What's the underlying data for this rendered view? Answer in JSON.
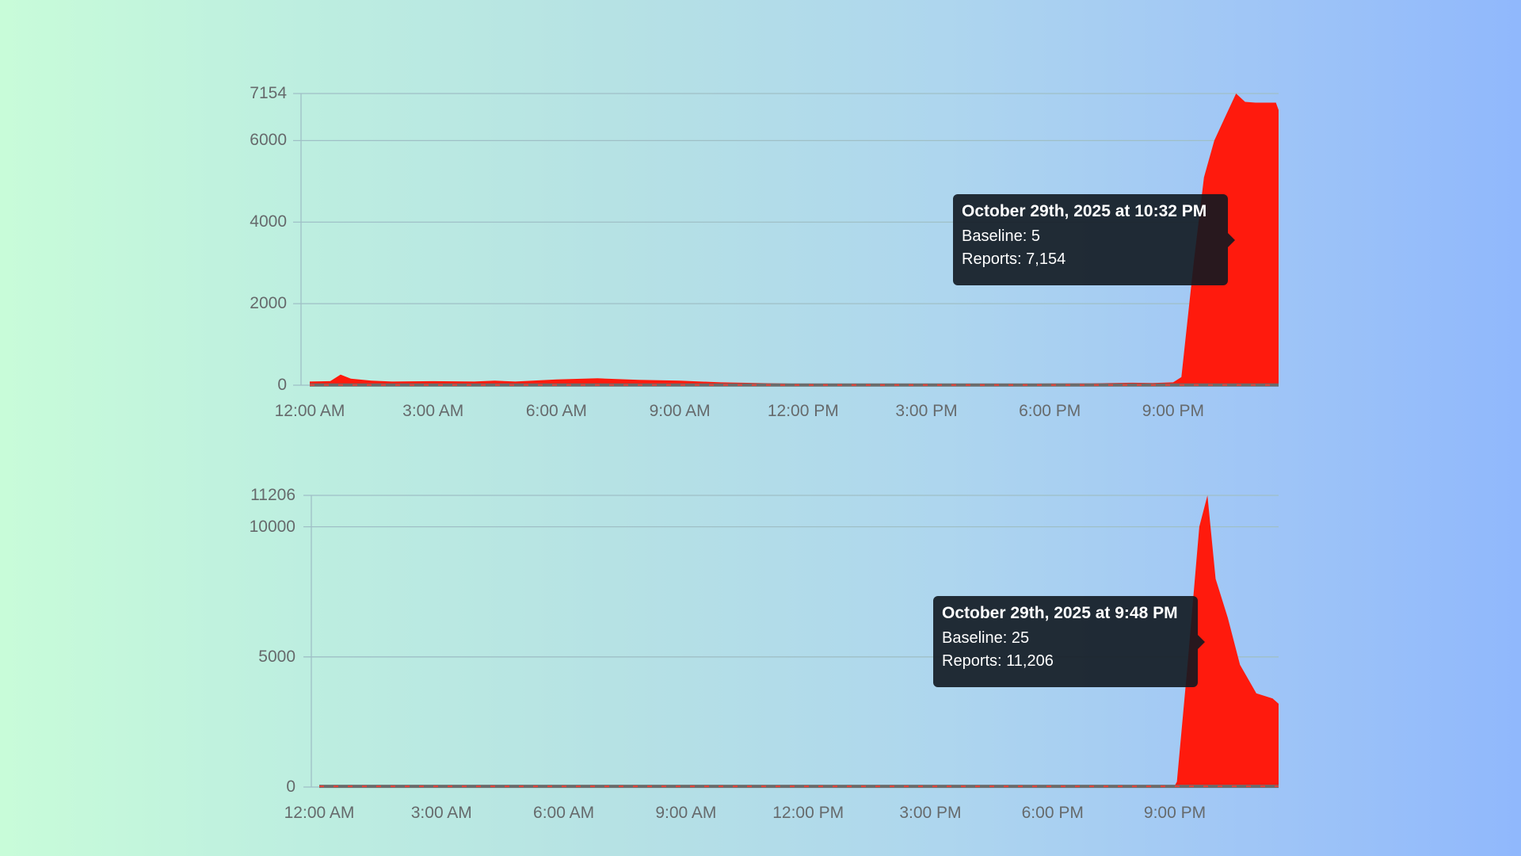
{
  "colors": {
    "area": "#ff1a0d",
    "baseline_line": "#6b6b6b",
    "baseline_dash": "#ff3b2f",
    "grid": "#9fbfc6",
    "tick_text": "#666a6c",
    "tooltip_bg": "#111820"
  },
  "chart_data": [
    {
      "type": "area",
      "title": "",
      "xlabel": "",
      "ylabel": "",
      "x_ticks": [
        "12:00 AM",
        "3:00 AM",
        "6:00 AM",
        "9:00 AM",
        "12:00 PM",
        "3:00 PM",
        "6:00 PM",
        "9:00 PM"
      ],
      "y_ticks": [
        0,
        2000,
        4000,
        6000,
        7154
      ],
      "ylim": [
        0,
        7154
      ],
      "xlim_hours": [
        0,
        23.75
      ],
      "grid": true,
      "legend": "none",
      "series": [
        {
          "name": "Reports",
          "x_hours": [
            0,
            0.5,
            0.75,
            1.0,
            1.5,
            2,
            3,
            4,
            4.5,
            5,
            6,
            7,
            8,
            9,
            10,
            11,
            12,
            13,
            14,
            15,
            16,
            17,
            18,
            19,
            20,
            20.5,
            21,
            21.2,
            21.5,
            21.75,
            22.0,
            22.25,
            22.53,
            22.75,
            23.0,
            23.5,
            23.75
          ],
          "values": [
            90,
            100,
            260,
            160,
            110,
            90,
            100,
            90,
            110,
            90,
            140,
            170,
            130,
            110,
            70,
            50,
            35,
            30,
            25,
            25,
            30,
            35,
            40,
            45,
            60,
            55,
            70,
            200,
            3000,
            5100,
            6000,
            6550,
            7154,
            6950,
            6930,
            6930,
            6750
          ]
        },
        {
          "name": "Baseline",
          "x_hours": [
            0,
            23.75
          ],
          "values": [
            5,
            5
          ]
        }
      ],
      "tooltip": {
        "title": "October 29th, 2025 at 10:32 PM",
        "baseline_label": "Baseline:",
        "baseline_value": "5",
        "reports_label": "Reports:",
        "reports_value": "7,154"
      }
    },
    {
      "type": "area",
      "title": "",
      "xlabel": "",
      "ylabel": "",
      "x_ticks": [
        "12:00 AM",
        "3:00 AM",
        "6:00 AM",
        "9:00 AM",
        "12:00 PM",
        "3:00 PM",
        "6:00 PM",
        "9:00 PM"
      ],
      "y_ticks": [
        0,
        5000,
        10000,
        11206
      ],
      "ylim": [
        0,
        11206
      ],
      "xlim_hours": [
        0,
        23.75
      ],
      "grid": true,
      "legend": "none",
      "series": [
        {
          "name": "Reports",
          "x_hours": [
            0,
            1,
            2,
            3,
            4,
            6,
            8,
            10,
            12,
            14,
            16,
            18,
            19,
            20,
            21,
            21.05,
            21.3,
            21.6,
            21.8,
            22.0,
            22.3,
            22.6,
            23.0,
            23.4,
            23.75
          ],
          "values": [
            40,
            35,
            30,
            30,
            25,
            25,
            25,
            20,
            20,
            20,
            20,
            30,
            40,
            50,
            60,
            200,
            4500,
            10000,
            11206,
            8000,
            6500,
            4700,
            3600,
            3400,
            3200
          ]
        },
        {
          "name": "Baseline",
          "x_hours": [
            0,
            23.75
          ],
          "values": [
            25,
            25
          ]
        }
      ],
      "tooltip": {
        "title": "October 29th, 2025 at 9:48 PM",
        "baseline_label": "Baseline:",
        "baseline_value": "25",
        "reports_label": "Reports:",
        "reports_value": "11,206"
      }
    }
  ]
}
